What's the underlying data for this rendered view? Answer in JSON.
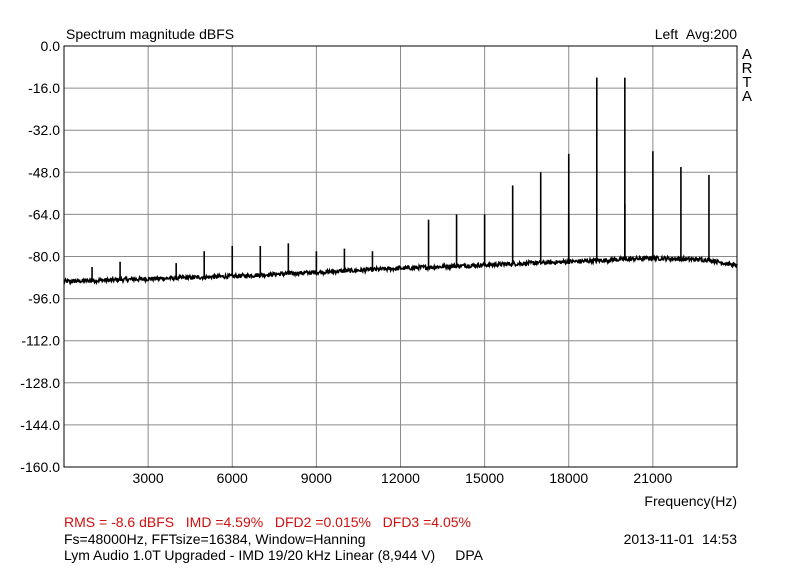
{
  "header": {
    "title": "Spectrum magnitude dBFS",
    "channel": "Left",
    "average": "Avg:200",
    "brand_letters": [
      "A",
      "R",
      "T",
      "A"
    ]
  },
  "footer": {
    "rms": "RMS =   -8.6 dBFS",
    "imd": "IMD =4.59%",
    "dfd2": "DFD2 =0.015%",
    "dfd3": "DFD3 =4.05%",
    "fft_info": "Fs=48000Hz, FFTsize=16384, Window=Hanning",
    "date": "2013-11-01",
    "time": "14:53",
    "description": "Lym Audio 1.0T Upgraded - IMD 19/20 kHz Linear (8,944 V)",
    "device": "DPA"
  },
  "colors": {
    "plot_line": "#000000",
    "grid": "#8c8c8c",
    "metrics_text": "#d01010",
    "frame": "#000000"
  },
  "chart_data": {
    "type": "line",
    "title": "Spectrum magnitude dBFS",
    "xlabel": "Frequency(Hz)",
    "ylabel": "",
    "xlim": [
      0,
      24000
    ],
    "ylim": [
      -160,
      0
    ],
    "x_ticks": [
      3000,
      6000,
      9000,
      12000,
      15000,
      18000,
      21000
    ],
    "y_ticks": [
      0.0,
      -16.0,
      -32.0,
      -48.0,
      -64.0,
      -80.0,
      -96.0,
      -112.0,
      -128.0,
      -144.0,
      -160.0
    ],
    "grid": true,
    "noise_floor": [
      {
        "x": 0,
        "y": -89.5
      },
      {
        "x": 3000,
        "y": -88.5
      },
      {
        "x": 6000,
        "y": -87.5
      },
      {
        "x": 9000,
        "y": -86.0
      },
      {
        "x": 12000,
        "y": -84.5
      },
      {
        "x": 15000,
        "y": -83.2
      },
      {
        "x": 18000,
        "y": -82.0
      },
      {
        "x": 21000,
        "y": -80.6
      },
      {
        "x": 23000,
        "y": -81.3
      },
      {
        "x": 24000,
        "y": -83.5
      }
    ],
    "peaks": [
      {
        "x": 1000,
        "y": -84
      },
      {
        "x": 2000,
        "y": -82
      },
      {
        "x": 4000,
        "y": -82.5
      },
      {
        "x": 5000,
        "y": -78
      },
      {
        "x": 6000,
        "y": -76
      },
      {
        "x": 7000,
        "y": -76
      },
      {
        "x": 8000,
        "y": -75
      },
      {
        "x": 9000,
        "y": -78
      },
      {
        "x": 10000,
        "y": -77
      },
      {
        "x": 11000,
        "y": -78
      },
      {
        "x": 13000,
        "y": -66
      },
      {
        "x": 14000,
        "y": -64
      },
      {
        "x": 15000,
        "y": -64
      },
      {
        "x": 16000,
        "y": -53
      },
      {
        "x": 17000,
        "y": -48
      },
      {
        "x": 18000,
        "y": -64
      },
      {
        "x": 18000,
        "y": -41
      },
      {
        "x": 19000,
        "y": -12
      },
      {
        "x": 20000,
        "y": -60
      },
      {
        "x": 20000,
        "y": -12
      },
      {
        "x": 21000,
        "y": -40
      },
      {
        "x": 22000,
        "y": -46
      },
      {
        "x": 23000,
        "y": -49
      }
    ]
  }
}
